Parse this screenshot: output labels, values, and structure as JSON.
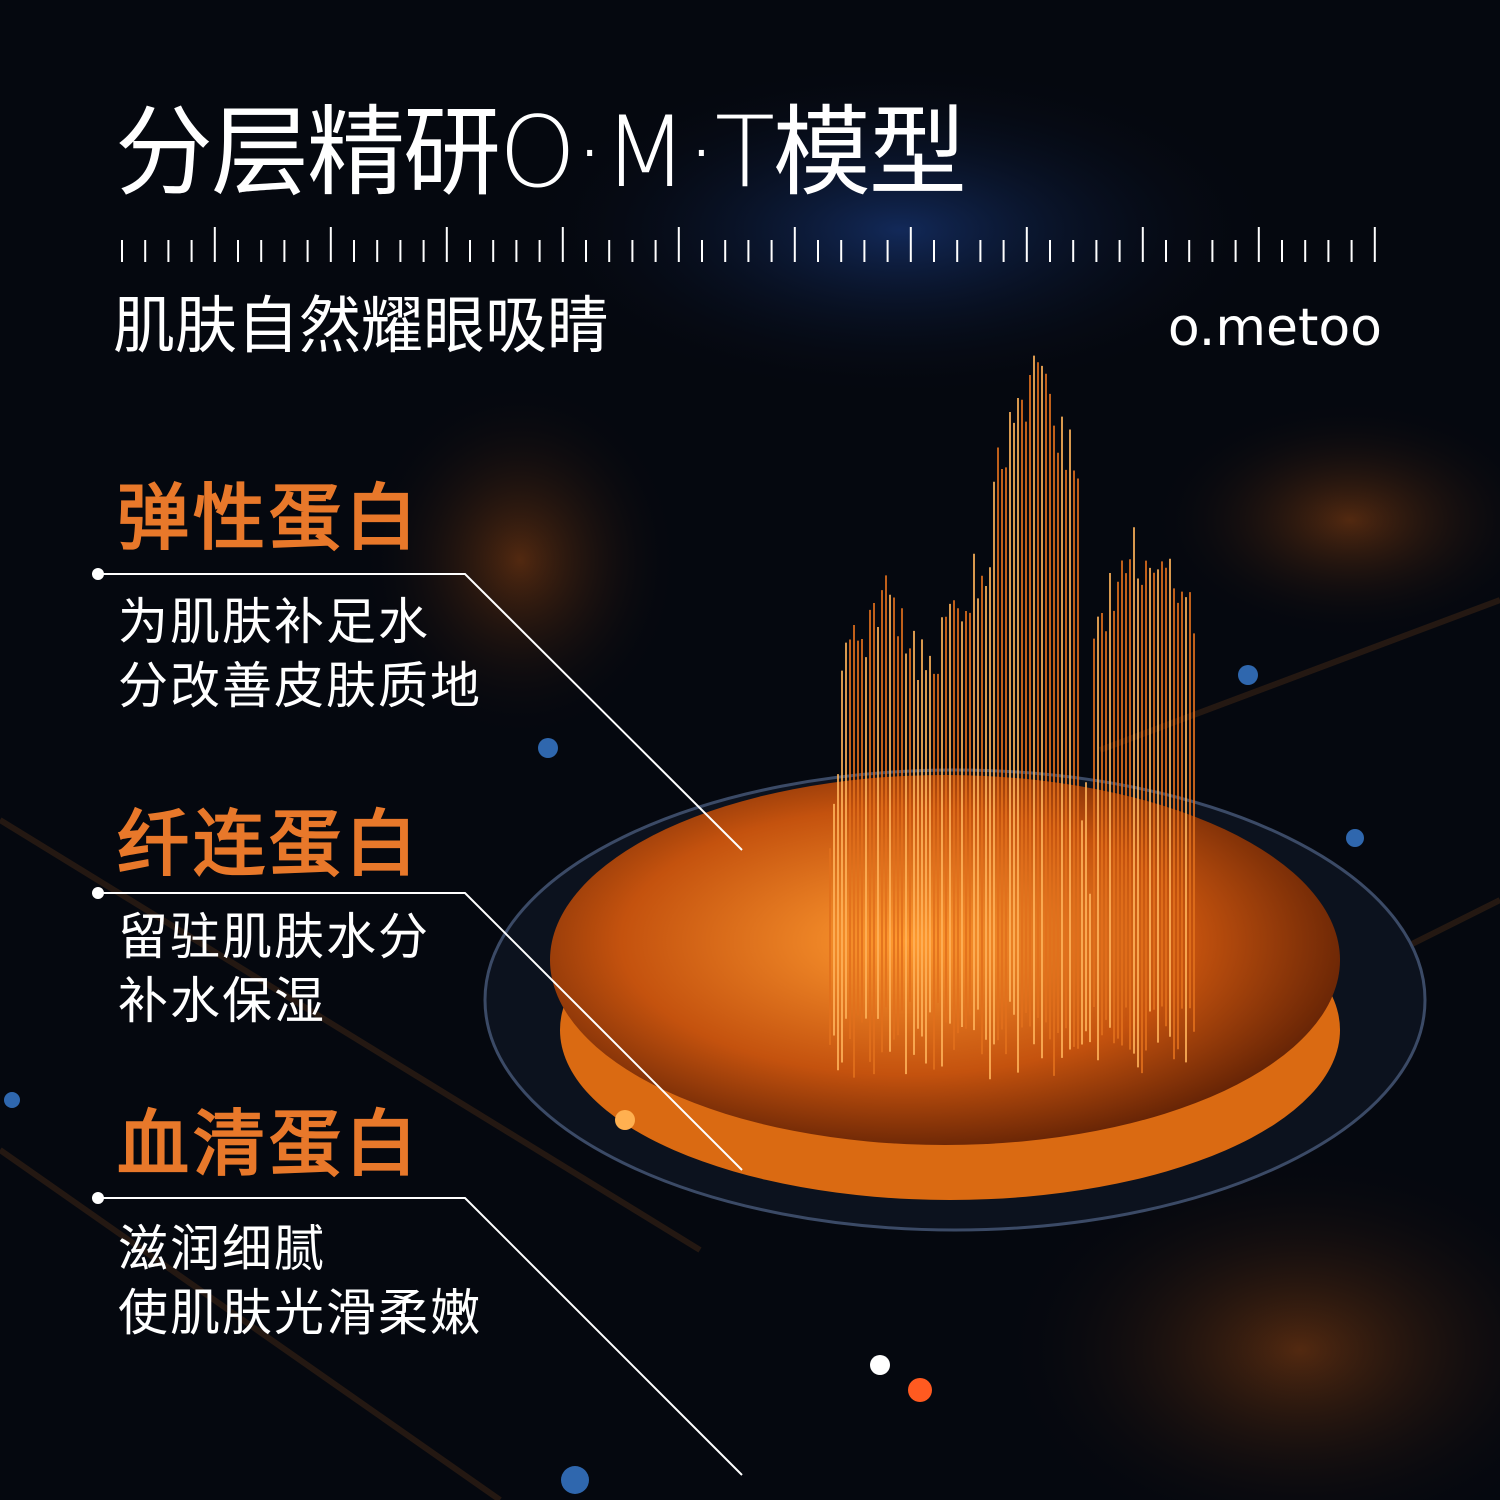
{
  "header": {
    "title": "分层精研O·M·T模型",
    "subtitle": "肌肤自然耀眼吸睛",
    "brand": "o.metoo"
  },
  "features": [
    {
      "heading": "弹性蛋白",
      "lines": [
        "为肌肤补足水",
        "分改善皮肤质地"
      ]
    },
    {
      "heading": "纤连蛋白",
      "lines": [
        "留驻肌肤水分",
        "补水保湿"
      ]
    },
    {
      "heading": "血清蛋白",
      "lines": [
        "滋润细腻",
        "使肌肤光滑柔嫩"
      ]
    }
  ],
  "colors": {
    "accent": "#e8782a",
    "background": "#05080f",
    "glow": "#ff8a1e"
  }
}
